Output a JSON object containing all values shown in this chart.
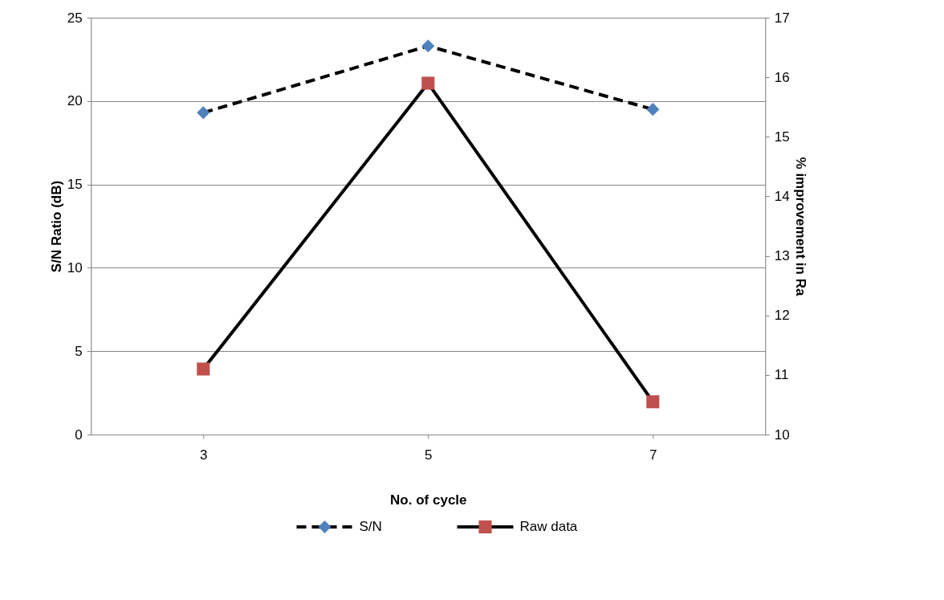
{
  "chart_data": {
    "type": "line",
    "xlabel": "No. of cycle",
    "ylabel": "S/N Ratio (dB)",
    "y2label": "% improvement in Ra",
    "categories": [
      "3",
      "5",
      "7"
    ],
    "series": [
      {
        "name": "S/N",
        "color": "#4f81bd",
        "marker": "diamond",
        "line_style": "dashed",
        "values": [
          19.3,
          23.3,
          19.5
        ]
      },
      {
        "name": "Raw data",
        "color": "#c0504d",
        "marker": "square",
        "line_style": "solid",
        "axis": "y2",
        "values": [
          11.1,
          15.9,
          10.55
        ]
      }
    ],
    "ylim": [
      0,
      25
    ],
    "yticks": [
      0,
      5,
      10,
      15,
      20,
      25
    ],
    "y2lim": [
      10,
      17
    ],
    "y2ticks": [
      10,
      11,
      12,
      13,
      14,
      15,
      16,
      17
    ],
    "grid": "y",
    "legend": "bottom"
  }
}
